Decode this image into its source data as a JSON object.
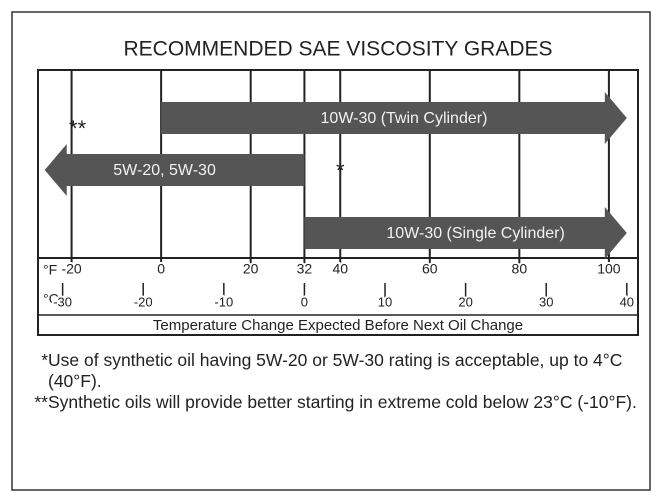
{
  "chart_data": {
    "type": "range-arrows",
    "title": "RECOMMENDED SAE VISCOSITY GRADES",
    "xlabel": "Temperature Change Expected Before Next Oil Change",
    "xunit": "°F",
    "x2unit": "°C",
    "xlim": [
      -27.5,
      106.5
    ],
    "xticks": [
      -20,
      0,
      20,
      32,
      40,
      60,
      80,
      100
    ],
    "x2ticks": [
      -30,
      -20,
      -10,
      0,
      10,
      20,
      30,
      40
    ],
    "color": "#555555",
    "series": [
      {
        "name": "10W-30 (Twin Cylinder)",
        "range": [
          0,
          104
        ]
      },
      {
        "name": "5W-20, 5W-30",
        "range": [
          32,
          -26
        ]
      },
      {
        "name": "10W-30 (Single Cylinder)",
        "range": [
          32,
          104
        ]
      }
    ],
    "markers": [
      {
        "label": "**",
        "x": -20
      },
      {
        "label": "*",
        "x": 40
      }
    ],
    "notes": [
      {
        "marker": "*",
        "text": "Use of synthetic oil having 5W-20 or 5W-30 rating is acceptable, up to 4°C (40°F)."
      },
      {
        "marker": "**",
        "text": "Synthetic oils will provide better starting in extreme cold below 23°C (-10°F)."
      }
    ]
  }
}
